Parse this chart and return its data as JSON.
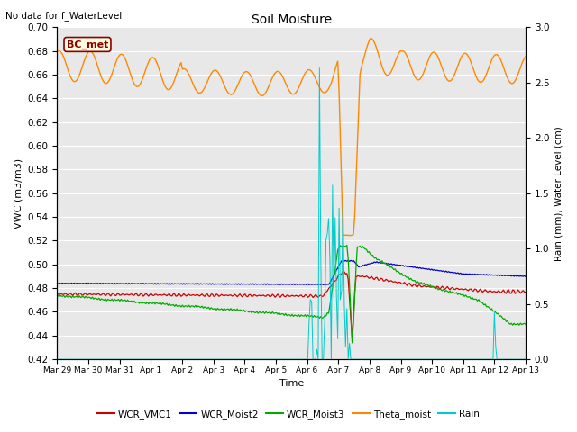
{
  "title": "Soil Moisture",
  "ylabel_left": "VWC (m3/m3)",
  "ylabel_right": "Rain (mm), Water Level (cm)",
  "xlabel": "Time",
  "annotation_text": "No data for f_WaterLevel",
  "box_label": "BC_met",
  "ylim_left": [
    0.42,
    0.7
  ],
  "ylim_right": [
    0.0,
    3.0
  ],
  "yticks_left": [
    0.42,
    0.44,
    0.46,
    0.48,
    0.5,
    0.52,
    0.54,
    0.56,
    0.58,
    0.6,
    0.62,
    0.64,
    0.66,
    0.68,
    0.7
  ],
  "yticks_right": [
    0.0,
    0.5,
    1.0,
    1.5,
    2.0,
    2.5,
    3.0
  ],
  "background_color": "#e8e8e8",
  "colors": {
    "WCR_VMC1": "#cc0000",
    "WCR_Moist2": "#0000cc",
    "WCR_Moist3": "#00aa00",
    "Theta_moist": "#ff8800",
    "Rain": "#00cccc"
  },
  "x_tick_labels": [
    "Mar 29",
    "Mar 30",
    "Mar 31",
    "Apr 1",
    "Apr 2",
    "Apr 3",
    "Apr 4",
    "Apr 5",
    "Apr 6",
    "Apr 7",
    "Apr 8",
    "Apr 9",
    "Apr 10",
    "Apr 11",
    "Apr 12",
    "Apr 13"
  ],
  "legend_labels": [
    "WCR_VMC1",
    "WCR_Moist2",
    "WCR_Moist3",
    "Theta_moist",
    "Rain"
  ]
}
